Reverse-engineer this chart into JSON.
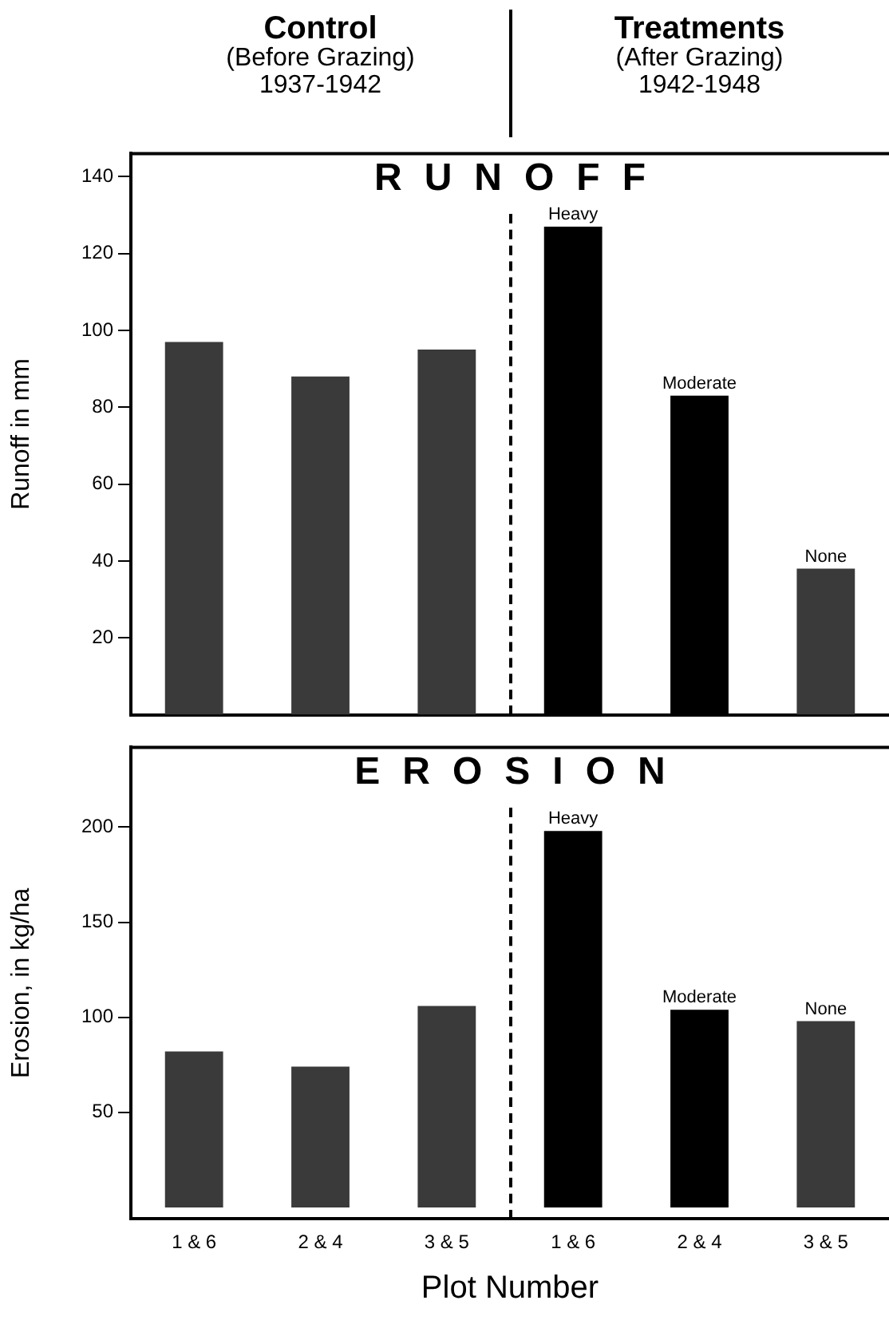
{
  "chart_data": [
    {
      "type": "bar",
      "title": "RUNOFF",
      "ylabel": "Runoff in mm",
      "categories": [
        null,
        null,
        null,
        null,
        null,
        null
      ],
      "values": [
        97,
        88,
        95,
        127,
        83,
        38
      ],
      "colors": [
        "#3a3a3a",
        "#3a3a3a",
        "#3a3a3a",
        "#000000",
        "#000000",
        "#3a3a3a"
      ],
      "ylim": [
        0,
        146
      ],
      "yticks": [
        20,
        40,
        60,
        80,
        100,
        120,
        140
      ],
      "grid": false,
      "legend": false,
      "tick_labels": "y",
      "value_labels": [
        null,
        null,
        null,
        "Heavy",
        "Moderate",
        "None"
      ],
      "annotations": [
        "Control",
        "(Before Grazing)",
        "1937-1942",
        "Treatments",
        "(After Grazing)",
        "1942-1948"
      ]
    },
    {
      "type": "bar",
      "title": "EROSION",
      "ylabel": "Erosion, in kg/ha",
      "xlabel": "Plot Number",
      "categories": [
        "1 & 6",
        "2 & 4",
        "3 & 5",
        "1 & 6",
        "2 & 4",
        "3 & 5"
      ],
      "values": [
        82,
        74,
        106,
        198,
        104,
        98
      ],
      "colors": [
        "#3a3a3a",
        "#3a3a3a",
        "#3a3a3a",
        "#000000",
        "#000000",
        "#3a3a3a"
      ],
      "ylim": [
        -6,
        242
      ],
      "yticks": [
        50,
        100,
        150,
        200
      ],
      "grid": false,
      "legend": false,
      "value_labels": [
        null,
        null,
        null,
        "Heavy",
        "Moderate",
        "None"
      ]
    }
  ]
}
